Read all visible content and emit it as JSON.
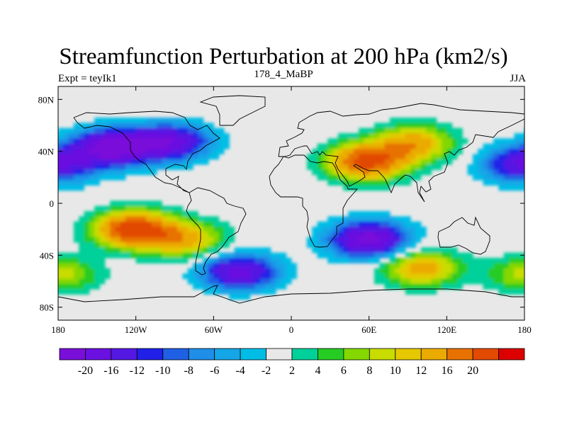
{
  "title": "Streamfunction Perturbation at 200 hPa (km2/s)",
  "subtitle_left": "Expt = teyIk1",
  "subtitle_center": "178_4_MaBP",
  "subtitle_right": "JJA",
  "axis": {
    "lon_min": -180,
    "lon_max": 180,
    "lat_min": -90,
    "lat_max": 90,
    "x_ticks": [
      {
        "lon": -180,
        "label": "180"
      },
      {
        "lon": -120,
        "label": "120W"
      },
      {
        "lon": -60,
        "label": "60W"
      },
      {
        "lon": 0,
        "label": "0"
      },
      {
        "lon": 60,
        "label": "60E"
      },
      {
        "lon": 120,
        "label": "120E"
      },
      {
        "lon": 180,
        "label": "180"
      }
    ],
    "y_ticks": [
      {
        "lat": 80,
        "label": "80N"
      },
      {
        "lat": 40,
        "label": "40N"
      },
      {
        "lat": 0,
        "label": "0"
      },
      {
        "lat": -40,
        "label": "40S"
      },
      {
        "lat": -80,
        "label": "80S"
      }
    ]
  },
  "colorbar": {
    "colors": [
      "#7a0fd9",
      "#6a10e0",
      "#5418e3",
      "#2020e8",
      "#2060e4",
      "#1e8ee8",
      "#14a6e6",
      "#00bde6",
      "#e8e8e8",
      "#00d09a",
      "#26cc24",
      "#84d800",
      "#c8dc00",
      "#e6c800",
      "#ebaa00",
      "#e87200",
      "#e24a00",
      "#dc0000"
    ],
    "labels": [
      "-20",
      "-16",
      "-12",
      "-10",
      "-8",
      "-6",
      "-4",
      "-2",
      "2",
      "4",
      "6",
      "8",
      "10",
      "12",
      "16",
      "20"
    ],
    "label_breaks": [
      1,
      2,
      3,
      4,
      5,
      6,
      7,
      8,
      9,
      10,
      11,
      12,
      13,
      14,
      15,
      16
    ]
  },
  "field": {
    "centers": [
      {
        "name": "n-pacific-low",
        "lon": -138,
        "lat": 43,
        "amp": -23
      },
      {
        "name": "n-atlantic-low",
        "lon": -93,
        "lat": 47,
        "amp": -18
      },
      {
        "name": "far-east-low",
        "lon": 178,
        "lat": 30,
        "amp": -16
      },
      {
        "name": "eurasia-high",
        "lon": 58,
        "lat": 32,
        "amp": 22
      },
      {
        "name": "asia-high",
        "lon": 95,
        "lat": 46,
        "amp": 14
      },
      {
        "name": "s-pacific-high",
        "lon": -122,
        "lat": -20,
        "amp": 23
      },
      {
        "name": "s-atlantic-high",
        "lon": -82,
        "lat": -28,
        "amp": 13
      },
      {
        "name": "indian-ocean-low",
        "lon": 60,
        "lat": -28,
        "amp": -22
      },
      {
        "name": "s-ocean-low",
        "lon": -40,
        "lat": -53,
        "amp": -18
      },
      {
        "name": "s-indian-high",
        "lon": 100,
        "lat": -50,
        "amp": 14
      },
      {
        "name": "far-south-high",
        "lon": -178,
        "lat": -55,
        "amp": 9
      }
    ]
  }
}
